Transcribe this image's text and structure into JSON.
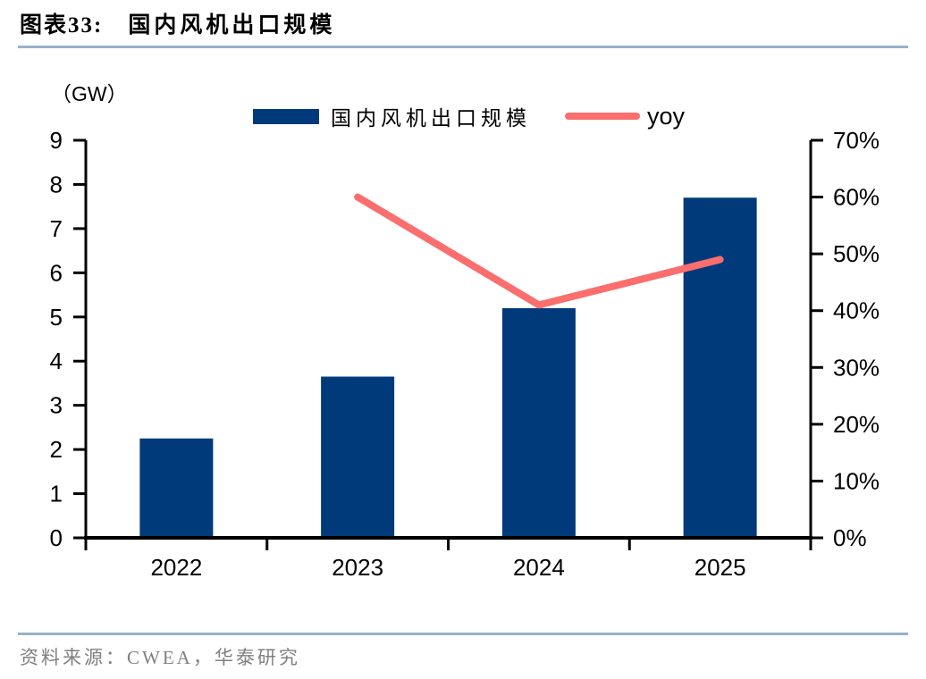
{
  "header": {
    "title_prefix": "图表33:",
    "title": "国内风机出口规模"
  },
  "legend": {
    "bar_label": "国内风机出口规模",
    "line_label": "yoy"
  },
  "chart_data": {
    "type": "bar",
    "subtype": "bar+line combo, dual axis",
    "title": "国内风机出口规模",
    "categories": [
      "2022",
      "2023",
      "2024",
      "2025"
    ],
    "series": [
      {
        "name": "国内风机出口规模",
        "type": "bar",
        "axis": "left",
        "unit": "GW",
        "values": [
          2.25,
          3.65,
          5.2,
          7.7
        ],
        "color": "#003a7a"
      },
      {
        "name": "yoy",
        "type": "line",
        "axis": "right",
        "unit": "%",
        "values": [
          null,
          60,
          41,
          49
        ],
        "color": "#fa6e6e"
      }
    ],
    "left_axis": {
      "label": "（GW）",
      "min": 0,
      "max": 9,
      "ticks": [
        0,
        1,
        2,
        3,
        4,
        5,
        6,
        7,
        8,
        9
      ]
    },
    "right_axis": {
      "min": 0,
      "max": 70,
      "ticks": [
        "0%",
        "10%",
        "20%",
        "30%",
        "40%",
        "50%",
        "60%",
        "70%"
      ]
    },
    "grid": "off",
    "legend_position": "top-center",
    "colors": {
      "bar": "#003a7a",
      "line": "#fa6e6e",
      "axis": "#000000",
      "rule": "#98b1ca",
      "source_text": "#808080"
    }
  },
  "footer": {
    "source": "资料来源：CWEA，华泰研究"
  }
}
